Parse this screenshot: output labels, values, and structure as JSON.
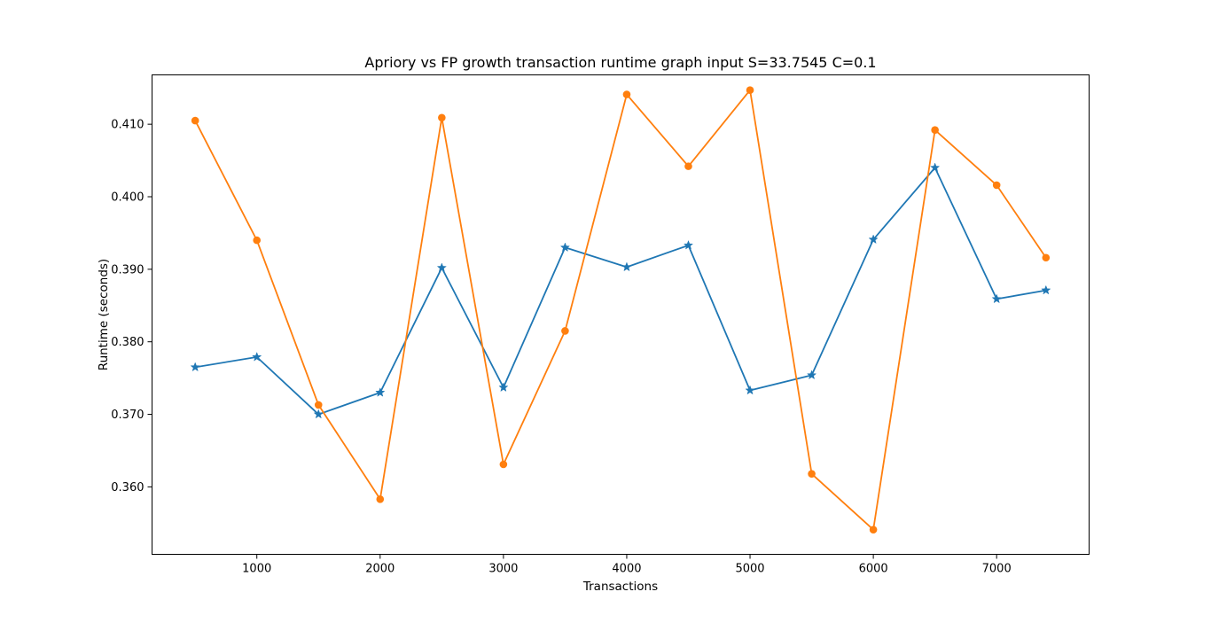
{
  "chart_data": {
    "type": "line",
    "title": "Apriory vs FP growth transaction runtime graph input S=33.7545 C=0.1",
    "xlabel": "Transactions",
    "ylabel": "Runtime (seconds)",
    "xlim": [
      150,
      7750
    ],
    "ylim": [
      0.3507,
      0.4168
    ],
    "x_ticks": [
      1000,
      2000,
      3000,
      4000,
      5000,
      6000,
      7000
    ],
    "y_ticks": [
      0.36,
      0.37,
      0.38,
      0.39,
      0.4,
      0.41
    ],
    "y_tick_labels": [
      "0.360",
      "0.370",
      "0.380",
      "0.390",
      "0.400",
      "0.410"
    ],
    "grid": false,
    "x": [
      500,
      1000,
      1500,
      2000,
      2500,
      3000,
      3500,
      4000,
      4500,
      5000,
      5500,
      6000,
      6500,
      7000,
      7400
    ],
    "series": [
      {
        "color": "#1f77b4",
        "marker": "star",
        "values": [
          0.3765,
          0.3779,
          0.37,
          0.373,
          0.3902,
          0.3737,
          0.393,
          0.3903,
          0.3933,
          0.3733,
          0.3754,
          0.3941,
          0.404,
          0.3859,
          0.3871
        ]
      },
      {
        "color": "#ff7f0e",
        "marker": "circle",
        "values": [
          0.4105,
          0.394,
          0.3713,
          0.3583,
          0.4109,
          0.3631,
          0.3815,
          0.4141,
          0.4042,
          0.4147,
          0.3618,
          0.3541,
          0.4092,
          0.4016,
          0.3916
        ]
      }
    ]
  }
}
